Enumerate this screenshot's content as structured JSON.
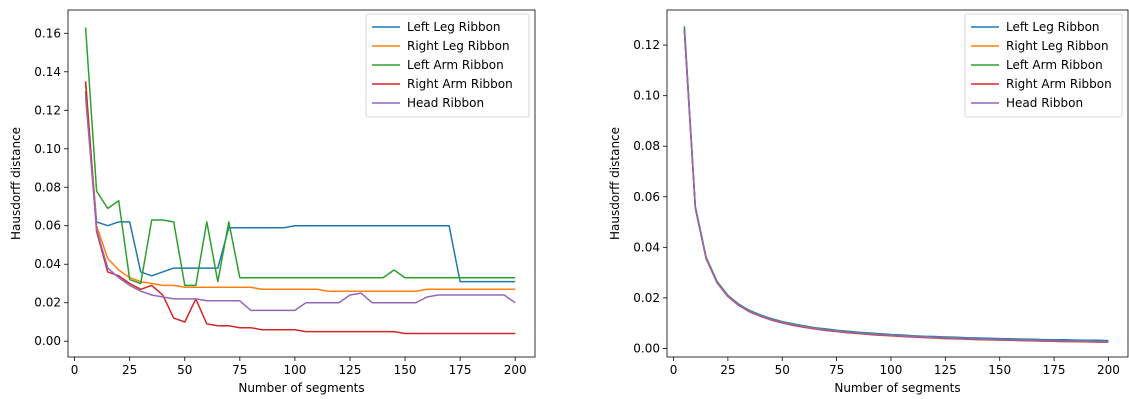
{
  "chart_data": [
    {
      "type": "line",
      "xlabel": "Number of segments",
      "ylabel": "Hausdorff distance",
      "xlim": [
        -3,
        209
      ],
      "ylim": [
        -0.0082,
        0.1721
      ],
      "xticks": [
        0,
        25,
        50,
        75,
        100,
        125,
        150,
        175,
        200
      ],
      "xtick_labels": [
        "0",
        "25",
        "50",
        "75",
        "100",
        "125",
        "150",
        "175",
        "200"
      ],
      "yticks": [
        0.0,
        0.02,
        0.04,
        0.06,
        0.08,
        0.1,
        0.12,
        0.14,
        0.16
      ],
      "ytick_labels": [
        "0.00",
        "0.02",
        "0.04",
        "0.06",
        "0.08",
        "0.10",
        "0.12",
        "0.14",
        "0.16"
      ],
      "grid": false,
      "legend_position": "top-right",
      "x": [
        5,
        10,
        15,
        20,
        25,
        30,
        35,
        40,
        45,
        50,
        55,
        60,
        65,
        70,
        75,
        80,
        85,
        90,
        95,
        100,
        105,
        110,
        115,
        120,
        125,
        130,
        135,
        140,
        145,
        150,
        155,
        160,
        165,
        170,
        175,
        180,
        185,
        190,
        195,
        200
      ],
      "series": [
        {
          "name": "Left Leg Ribbon",
          "color": "#1f77b4",
          "values": [
            0.13,
            0.062,
            0.06,
            0.062,
            0.062,
            0.036,
            0.034,
            0.036,
            0.038,
            0.038,
            0.038,
            0.038,
            0.038,
            0.059,
            0.059,
            0.059,
            0.059,
            0.059,
            0.059,
            0.06,
            0.06,
            0.06,
            0.06,
            0.06,
            0.06,
            0.06,
            0.06,
            0.06,
            0.06,
            0.06,
            0.06,
            0.06,
            0.06,
            0.06,
            0.031,
            0.031,
            0.031,
            0.031,
            0.031,
            0.031
          ]
        },
        {
          "name": "Right Leg Ribbon",
          "color": "#ff7f0e",
          "values": [
            0.135,
            0.06,
            0.043,
            0.037,
            0.033,
            0.031,
            0.03,
            0.029,
            0.029,
            0.028,
            0.028,
            0.028,
            0.028,
            0.028,
            0.028,
            0.028,
            0.027,
            0.027,
            0.027,
            0.027,
            0.027,
            0.027,
            0.026,
            0.026,
            0.026,
            0.026,
            0.026,
            0.026,
            0.026,
            0.026,
            0.026,
            0.027,
            0.027,
            0.027,
            0.027,
            0.027,
            0.027,
            0.027,
            0.027,
            0.027
          ]
        },
        {
          "name": "Left Arm Ribbon",
          "color": "#2ca02c",
          "values": [
            0.163,
            0.078,
            0.069,
            0.073,
            0.032,
            0.03,
            0.063,
            0.063,
            0.062,
            0.029,
            0.029,
            0.062,
            0.031,
            0.062,
            0.033,
            0.033,
            0.033,
            0.033,
            0.033,
            0.033,
            0.033,
            0.033,
            0.033,
            0.033,
            0.033,
            0.033,
            0.033,
            0.033,
            0.037,
            0.033,
            0.033,
            0.033,
            0.033,
            0.033,
            0.033,
            0.033,
            0.033,
            0.033,
            0.033,
            0.033
          ]
        },
        {
          "name": "Right Arm Ribbon",
          "color": "#d62728",
          "values": [
            0.135,
            0.057,
            0.036,
            0.034,
            0.03,
            0.027,
            0.029,
            0.024,
            0.012,
            0.01,
            0.022,
            0.009,
            0.008,
            0.008,
            0.007,
            0.007,
            0.006,
            0.006,
            0.006,
            0.006,
            0.005,
            0.005,
            0.005,
            0.005,
            0.005,
            0.005,
            0.005,
            0.005,
            0.005,
            0.004,
            0.004,
            0.004,
            0.004,
            0.004,
            0.004,
            0.004,
            0.004,
            0.004,
            0.004,
            0.004
          ]
        },
        {
          "name": "Head Ribbon",
          "color": "#9467bd",
          "values": [
            0.127,
            0.058,
            0.038,
            0.033,
            0.029,
            0.026,
            0.024,
            0.023,
            0.022,
            0.022,
            0.022,
            0.021,
            0.021,
            0.021,
            0.021,
            0.016,
            0.016,
            0.016,
            0.016,
            0.016,
            0.02,
            0.02,
            0.02,
            0.02,
            0.024,
            0.025,
            0.02,
            0.02,
            0.02,
            0.02,
            0.02,
            0.023,
            0.024,
            0.024,
            0.024,
            0.024,
            0.024,
            0.024,
            0.024,
            0.02
          ]
        }
      ]
    },
    {
      "type": "line",
      "xlabel": "Number of segments",
      "ylabel": "Hausdorff distance",
      "xlim": [
        -3,
        209
      ],
      "ylim": [
        -0.0034,
        0.1339
      ],
      "xticks": [
        0,
        25,
        50,
        75,
        100,
        125,
        150,
        175,
        200
      ],
      "xtick_labels": [
        "0",
        "25",
        "50",
        "75",
        "100",
        "125",
        "150",
        "175",
        "200"
      ],
      "yticks": [
        0.0,
        0.02,
        0.04,
        0.06,
        0.08,
        0.1,
        0.12
      ],
      "ytick_labels": [
        "0.00",
        "0.02",
        "0.04",
        "0.06",
        "0.08",
        "0.10",
        "0.12"
      ],
      "grid": false,
      "legend_position": "top-right",
      "x": [
        5,
        10,
        15,
        20,
        25,
        30,
        35,
        40,
        45,
        50,
        55,
        60,
        65,
        70,
        75,
        80,
        85,
        90,
        95,
        100,
        105,
        110,
        115,
        120,
        125,
        130,
        135,
        140,
        145,
        150,
        155,
        160,
        165,
        170,
        175,
        180,
        185,
        190,
        195,
        200
      ],
      "series": [
        {
          "name": "Left Leg Ribbon",
          "color": "#1f77b4",
          "values": [
            0.1265,
            0.056,
            0.036,
            0.0265,
            0.021,
            0.0175,
            0.015,
            0.0132,
            0.0118,
            0.0106,
            0.0097,
            0.0089,
            0.0082,
            0.0077,
            0.0072,
            0.0068,
            0.0064,
            0.0061,
            0.0058,
            0.0055,
            0.0053,
            0.005,
            0.0048,
            0.0047,
            0.0045,
            0.0044,
            0.0042,
            0.0041,
            0.004,
            0.0039,
            0.0038,
            0.0037,
            0.0036,
            0.0035,
            0.0034,
            0.0034,
            0.0033,
            0.0032,
            0.0032,
            0.0031
          ]
        },
        {
          "name": "Right Leg Ribbon",
          "color": "#ff7f0e",
          "values": [
            0.126,
            0.0558,
            0.0358,
            0.0263,
            0.0208,
            0.0173,
            0.0148,
            0.013,
            0.0115,
            0.0104,
            0.0094,
            0.0087,
            0.008,
            0.0074,
            0.007,
            0.0065,
            0.0062,
            0.0058,
            0.0055,
            0.0053,
            0.005,
            0.0048,
            0.0046,
            0.0044,
            0.0042,
            0.0041,
            0.0039,
            0.0038,
            0.0037,
            0.0036,
            0.0035,
            0.0034,
            0.0033,
            0.0032,
            0.0031,
            0.003,
            0.003,
            0.0029,
            0.0028,
            0.0028
          ]
        },
        {
          "name": "Left Arm Ribbon",
          "color": "#2ca02c",
          "values": [
            0.1275,
            0.0562,
            0.0361,
            0.0265,
            0.0209,
            0.0174,
            0.0149,
            0.0131,
            0.0116,
            0.0105,
            0.0095,
            0.0088,
            0.0081,
            0.0075,
            0.007,
            0.0066,
            0.0062,
            0.0059,
            0.0056,
            0.0053,
            0.005,
            0.0048,
            0.0046,
            0.0044,
            0.0042,
            0.0041,
            0.0039,
            0.0038,
            0.0037,
            0.0036,
            0.0035,
            0.0034,
            0.0033,
            0.0032,
            0.0031,
            0.003,
            0.003,
            0.0029,
            0.0028,
            0.0028
          ]
        },
        {
          "name": "Right Arm Ribbon",
          "color": "#d62728",
          "values": [
            0.1255,
            0.0555,
            0.0355,
            0.026,
            0.0205,
            0.017,
            0.0145,
            0.0127,
            0.0112,
            0.0101,
            0.0091,
            0.0084,
            0.0077,
            0.0071,
            0.0067,
            0.0062,
            0.0059,
            0.0055,
            0.0052,
            0.005,
            0.0047,
            0.0045,
            0.0043,
            0.0041,
            0.0039,
            0.0038,
            0.0036,
            0.0035,
            0.0034,
            0.0033,
            0.0032,
            0.0031,
            0.003,
            0.0029,
            0.0028,
            0.0027,
            0.0027,
            0.0026,
            0.0025,
            0.0025
          ]
        },
        {
          "name": "Head Ribbon",
          "color": "#9467bd",
          "values": [
            0.1262,
            0.0558,
            0.0358,
            0.0262,
            0.0207,
            0.0172,
            0.0147,
            0.0129,
            0.0114,
            0.0103,
            0.0093,
            0.0086,
            0.0079,
            0.0073,
            0.0069,
            0.0064,
            0.0061,
            0.0057,
            0.0054,
            0.0052,
            0.0049,
            0.0047,
            0.0045,
            0.0043,
            0.0041,
            0.004,
            0.0038,
            0.0037,
            0.0036,
            0.0035,
            0.0034,
            0.0033,
            0.0032,
            0.0031,
            0.003,
            0.0029,
            0.0029,
            0.0028,
            0.0027,
            0.0027
          ]
        }
      ]
    }
  ]
}
